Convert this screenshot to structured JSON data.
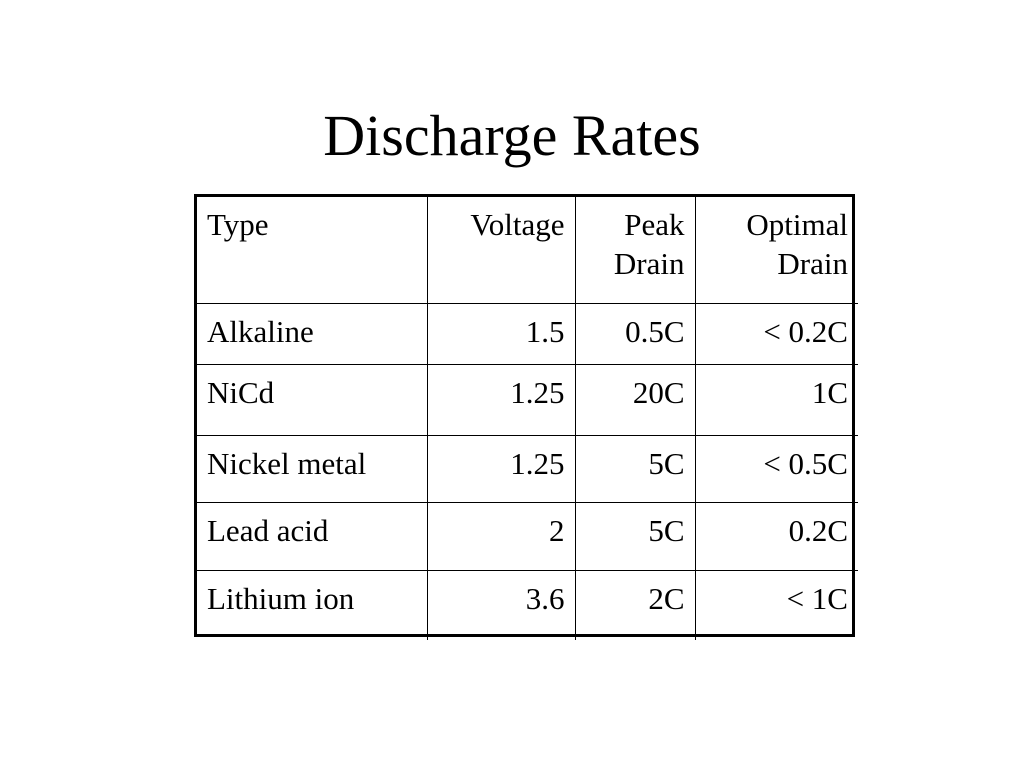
{
  "slide": {
    "title": "Discharge Rates"
  },
  "table": {
    "headers": [
      {
        "line1": "Type",
        "line2": ""
      },
      {
        "line1": "Voltage",
        "line2": ""
      },
      {
        "line1": "Peak",
        "line2": "Drain"
      },
      {
        "line1": "Optimal",
        "line2": "Drain"
      }
    ],
    "rows": [
      {
        "type": "Alkaline",
        "voltage": "1.5",
        "peak_drain": "0.5C",
        "optimal_drain": "< 0.2C"
      },
      {
        "type": "NiCd",
        "voltage": "1.25",
        "peak_drain": "20C",
        "optimal_drain": "1C"
      },
      {
        "type": "Nickel metal",
        "voltage": "1.25",
        "peak_drain": "5C",
        "optimal_drain": "< 0.5C"
      },
      {
        "type": "Lead acid",
        "voltage": "2",
        "peak_drain": "5C",
        "optimal_drain": "0.2C"
      },
      {
        "type": "Lithium ion",
        "voltage": "3.6",
        "peak_drain": "2C",
        "optimal_drain": "< 1C"
      }
    ]
  }
}
